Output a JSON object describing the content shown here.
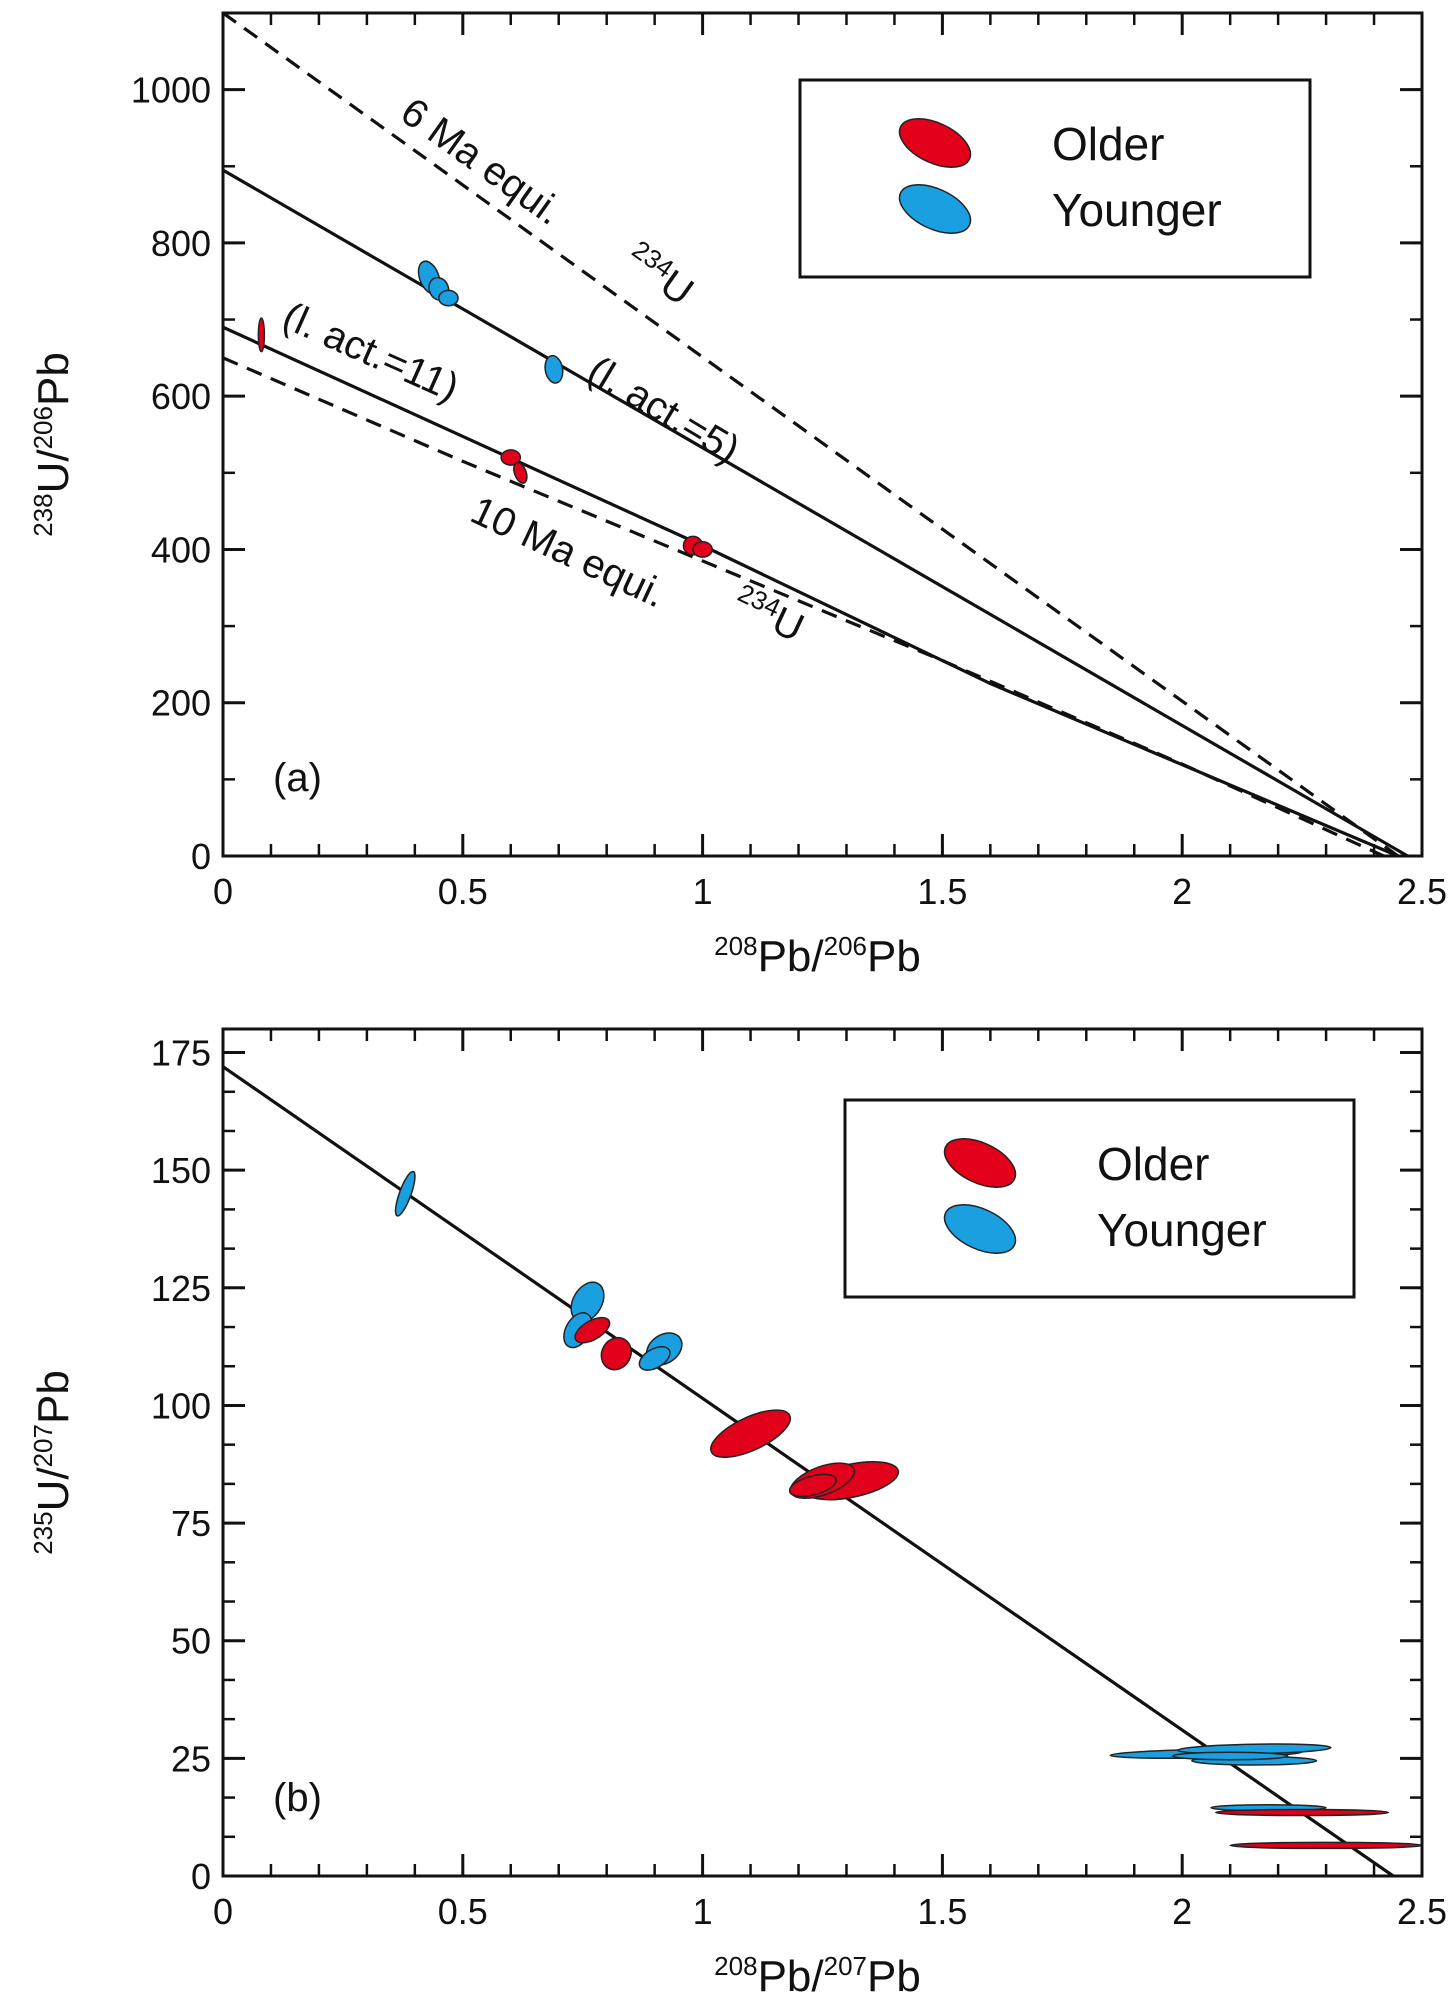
{
  "colors": {
    "older": "#e3001b",
    "younger": "#1a9fe0",
    "line": "#111111"
  },
  "chart_data": [
    {
      "type": "scatter",
      "panel_label": "(a)",
      "xlabel": {
        "sup1": "208",
        "t1": "Pb/",
        "sup2": "206",
        "t2": "Pb"
      },
      "ylabel": {
        "sup1": "238",
        "t1": "U/",
        "sup2": "206",
        "t2": "Pb"
      },
      "xlim": [
        0,
        2.5
      ],
      "ylim": [
        0,
        1100
      ],
      "xticks": [
        "0",
        "0.5",
        "1",
        "1.5",
        "2",
        "2.5"
      ],
      "yticks": [
        "0",
        "200",
        "400",
        "600",
        "800",
        "1000"
      ],
      "xtick_values": [
        0,
        0.5,
        1,
        1.5,
        2,
        2.5
      ],
      "ytick_values": [
        0,
        200,
        400,
        600,
        800,
        1000
      ],
      "x_minor": 0.1,
      "y_minor": 100,
      "legend": {
        "placement": "top-right",
        "items": [
          {
            "label": "Older",
            "group": "older"
          },
          {
            "label": "Younger",
            "group": "younger"
          }
        ]
      },
      "lines": [
        {
          "name": "6 Ma equi. 234U",
          "style": "dashed",
          "points": [
            [
              0,
              1100
            ],
            [
              2.45,
              0
            ]
          ]
        },
        {
          "name": "l. act.=5",
          "style": "solid",
          "points": [
            [
              0,
              895
            ],
            [
              2.47,
              0
            ]
          ]
        },
        {
          "name": "l. act.=11",
          "style": "solid",
          "points": [
            [
              0,
              690
            ],
            [
              1,
              405
            ],
            [
              1.6,
              225
            ],
            [
              2.45,
              0
            ]
          ]
        },
        {
          "name": "10 Ma equi. 234U",
          "style": "dashed",
          "points": [
            [
              0,
              650
            ],
            [
              0.5,
              515
            ],
            [
              1,
              385
            ],
            [
              1.5,
              255
            ],
            [
              2,
              120
            ],
            [
              2.42,
              0
            ]
          ]
        }
      ],
      "annotations": [
        {
          "text": "6 Ma equi.",
          "sup": "234",
          "unit": "U"
        },
        {
          "text": "(l. act.=5)"
        },
        {
          "text": "(l. act.=11)"
        },
        {
          "text": "10 Ma equi.",
          "sup": "234",
          "unit": "U"
        }
      ],
      "points": [
        {
          "group": "younger",
          "x": 0.43,
          "y": 755,
          "rx": 0.02,
          "ry": 22,
          "angle": -20
        },
        {
          "group": "younger",
          "x": 0.45,
          "y": 740,
          "rx": 0.02,
          "ry": 15,
          "angle": -20
        },
        {
          "group": "younger",
          "x": 0.47,
          "y": 728,
          "rx": 0.02,
          "ry": 10,
          "angle": 0
        },
        {
          "group": "younger",
          "x": 0.69,
          "y": 635,
          "rx": 0.018,
          "ry": 18,
          "angle": -10
        },
        {
          "group": "older",
          "x": 0.6,
          "y": 520,
          "rx": 0.02,
          "ry": 10,
          "angle": 0
        },
        {
          "group": "older",
          "x": 0.62,
          "y": 500,
          "rx": 0.012,
          "ry": 14,
          "angle": -20
        },
        {
          "group": "older",
          "x": 0.98,
          "y": 405,
          "rx": 0.02,
          "ry": 12,
          "angle": 0
        },
        {
          "group": "older",
          "x": 1.0,
          "y": 400,
          "rx": 0.02,
          "ry": 10,
          "angle": 0
        },
        {
          "group": "older",
          "x": 0.08,
          "y": 680,
          "rx": 0.006,
          "ry": 22,
          "angle": 0
        }
      ]
    },
    {
      "type": "scatter",
      "panel_label": "(b)",
      "xlabel": {
        "sup1": "208",
        "t1": "Pb/",
        "sup2": "207",
        "t2": "Pb"
      },
      "ylabel": {
        "sup1": "235",
        "t1": "U/",
        "sup2": "207",
        "t2": "Pb"
      },
      "xlim": [
        0,
        2.5
      ],
      "ylim": [
        0,
        180
      ],
      "xticks": [
        "0",
        "0.5",
        "1",
        "1.5",
        "2",
        "2.5"
      ],
      "yticks": [
        "0",
        "25",
        "50",
        "75",
        "100",
        "125",
        "150",
        "175"
      ],
      "xtick_values": [
        0,
        0.5,
        1,
        1.5,
        2,
        2.5
      ],
      "ytick_values": [
        0,
        25,
        50,
        75,
        100,
        125,
        150,
        175
      ],
      "x_minor": 0.1,
      "y_minor": 8.333,
      "legend": {
        "placement": "top-right",
        "items": [
          {
            "label": "Older",
            "group": "older"
          },
          {
            "label": "Younger",
            "group": "younger"
          }
        ]
      },
      "lines": [
        {
          "name": "isochron",
          "style": "solid",
          "points": [
            [
              0,
              172
            ],
            [
              2.44,
              0
            ]
          ]
        }
      ],
      "annotations": [],
      "points": [
        {
          "group": "younger",
          "x": 0.38,
          "y": 145,
          "rx": 0.012,
          "ry": 5,
          "angle": 20
        },
        {
          "group": "younger",
          "x": 0.76,
          "y": 122,
          "rx": 0.03,
          "ry": 4.5,
          "angle": 30
        },
        {
          "group": "younger",
          "x": 0.74,
          "y": 116,
          "rx": 0.025,
          "ry": 4,
          "angle": 30
        },
        {
          "group": "older",
          "x": 0.77,
          "y": 116,
          "rx": 0.04,
          "ry": 2,
          "angle": -30
        },
        {
          "group": "older",
          "x": 0.82,
          "y": 111,
          "rx": 0.03,
          "ry": 3.5,
          "angle": 30
        },
        {
          "group": "younger",
          "x": 0.92,
          "y": 112,
          "rx": 0.04,
          "ry": 3,
          "angle": -35
        },
        {
          "group": "younger",
          "x": 0.9,
          "y": 110,
          "rx": 0.035,
          "ry": 2,
          "angle": -30
        },
        {
          "group": "older",
          "x": 1.1,
          "y": 94,
          "rx": 0.09,
          "ry": 3.5,
          "angle": -25
        },
        {
          "group": "older",
          "x": 1.31,
          "y": 84,
          "rx": 0.1,
          "ry": 3.5,
          "angle": -12
        },
        {
          "group": "older",
          "x": 1.25,
          "y": 84,
          "rx": 0.07,
          "ry": 3,
          "angle": -20
        },
        {
          "group": "older",
          "x": 1.23,
          "y": 83,
          "rx": 0.05,
          "ry": 2,
          "angle": -15
        },
        {
          "group": "younger",
          "x": 2.05,
          "y": 26,
          "rx": 0.2,
          "ry": 0.9,
          "angle": -1
        },
        {
          "group": "younger",
          "x": 2.15,
          "y": 27,
          "rx": 0.16,
          "ry": 1,
          "angle": -1
        },
        {
          "group": "younger",
          "x": 2.15,
          "y": 24.5,
          "rx": 0.13,
          "ry": 0.9,
          "angle": 0
        },
        {
          "group": "younger",
          "x": 2.1,
          "y": 25.5,
          "rx": 0.12,
          "ry": 0.8,
          "angle": 0
        },
        {
          "group": "younger",
          "x": 2.18,
          "y": 14.5,
          "rx": 0.12,
          "ry": 0.5,
          "angle": 0
        },
        {
          "group": "older",
          "x": 2.25,
          "y": 13.5,
          "rx": 0.18,
          "ry": 0.45,
          "angle": 0
        },
        {
          "group": "older",
          "x": 2.3,
          "y": 6.5,
          "rx": 0.2,
          "ry": 0.4,
          "angle": 0
        }
      ]
    }
  ]
}
